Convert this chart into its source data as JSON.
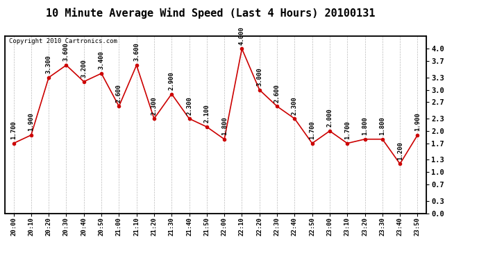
{
  "title": "10 Minute Average Wind Speed (Last 4 Hours) 20100131",
  "copyright": "Copyright 2010 Cartronics.com",
  "x_labels": [
    "20:00",
    "20:10",
    "20:20",
    "20:30",
    "20:40",
    "20:50",
    "21:00",
    "21:10",
    "21:20",
    "21:30",
    "21:40",
    "21:50",
    "22:00",
    "22:10",
    "22:20",
    "22:30",
    "22:40",
    "22:50",
    "23:00",
    "23:10",
    "23:20",
    "23:30",
    "23:40",
    "23:50"
  ],
  "y_values": [
    1.7,
    1.9,
    3.3,
    3.6,
    3.2,
    3.4,
    2.6,
    3.6,
    2.3,
    2.9,
    2.3,
    2.1,
    1.8,
    4.0,
    3.0,
    2.6,
    2.3,
    1.7,
    2.0,
    1.7,
    1.8,
    1.8,
    1.2,
    1.9
  ],
  "line_color": "#cc0000",
  "marker_color": "#cc0000",
  "bg_color": "#ffffff",
  "grid_color": "#bbbbbb",
  "ylim": [
    0.0,
    4.3
  ],
  "yticks_right": [
    0.0,
    0.3,
    0.7,
    1.0,
    1.3,
    1.7,
    2.0,
    2.3,
    2.7,
    3.0,
    3.3,
    3.7,
    4.0
  ],
  "title_fontsize": 11,
  "annotation_fontsize": 6.5,
  "copyright_fontsize": 6.5
}
